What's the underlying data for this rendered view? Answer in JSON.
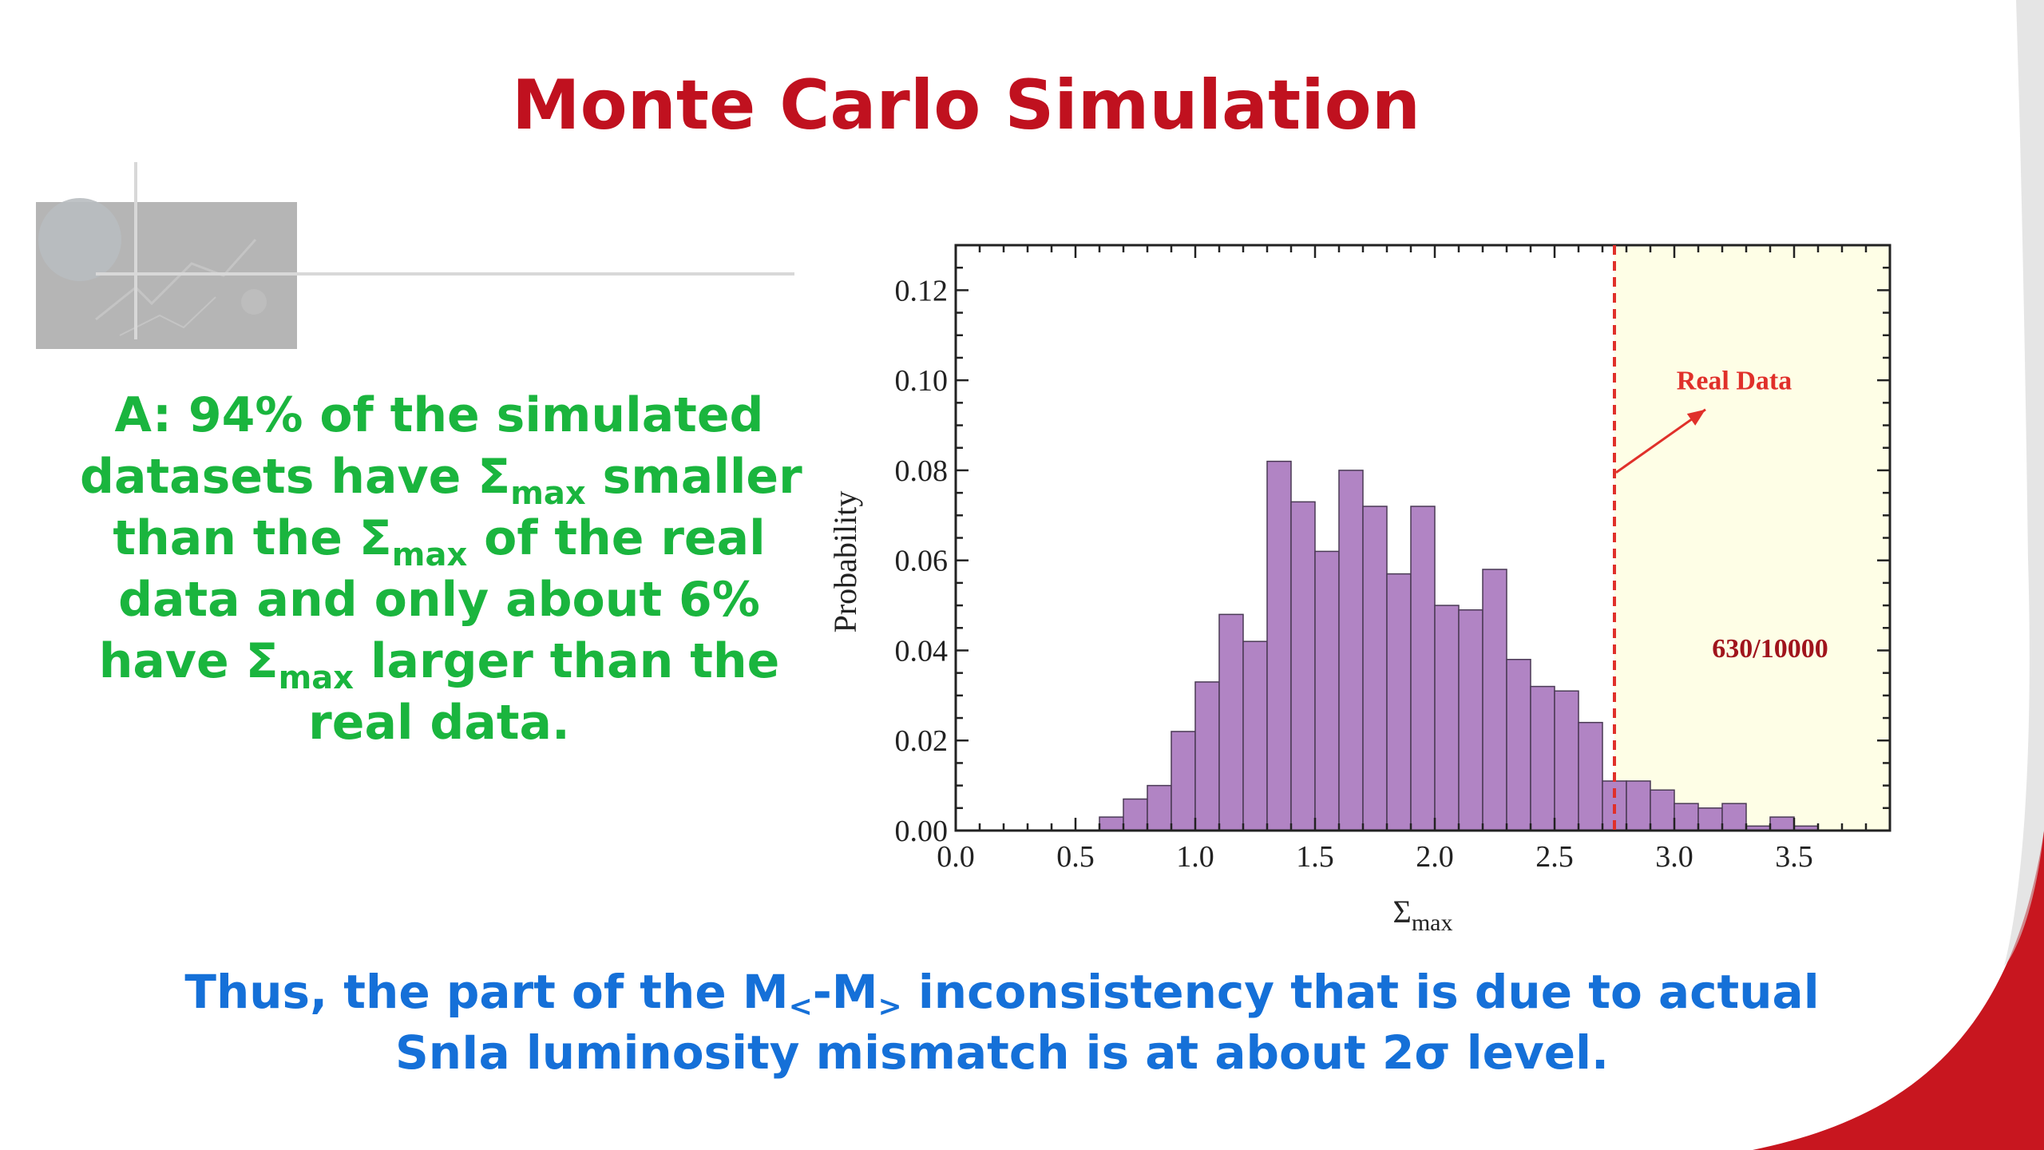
{
  "slide": {
    "title": "Monte Carlo Simulation",
    "answer": {
      "line1": "A: 94% of the simulated",
      "line2_a": "datasets have Σ",
      "line2_sub": "max",
      "line2_b": " smaller",
      "line3_a": "than the Σ",
      "line3_sub": "max",
      "line3_b": " of the real",
      "line4": "data and only about 6%",
      "line5_a": "have Σ",
      "line5_sub": "max",
      "line5_b": " larger than the",
      "line6": "real data."
    },
    "conclusion": {
      "line1_a": "Thus, the part of the M",
      "line1_sub1": "<",
      "line1_b": "-M",
      "line1_sub2": ">",
      "line1_c": " inconsistency that is due to actual",
      "line2": "SnIa luminosity mismatch is at about 2σ level."
    },
    "colors": {
      "title": "#c0111f",
      "answer": "#1ab53e",
      "conclusion": "#1570d8",
      "bar_fill": "#b184c4",
      "bar_stroke": "#4a3a55",
      "shade": "#fefee6",
      "threshold": "#e0302a"
    }
  },
  "chart_data": {
    "type": "bar",
    "xlabel_main": "Σ",
    "xlabel_sub": "max",
    "ylabel": "Probability",
    "xlim": [
      0.0,
      3.9
    ],
    "ylim": [
      0.0,
      0.13
    ],
    "bin_width": 0.1,
    "x_ticks": [
      "0.0",
      "0.5",
      "1.0",
      "1.5",
      "2.0",
      "2.5",
      "3.0",
      "3.5"
    ],
    "y_ticks": [
      "0.00",
      "0.02",
      "0.04",
      "0.06",
      "0.08",
      "0.10",
      "0.12"
    ],
    "bins": [
      {
        "x": 0.6,
        "y": 0.003
      },
      {
        "x": 0.7,
        "y": 0.007
      },
      {
        "x": 0.8,
        "y": 0.01
      },
      {
        "x": 0.9,
        "y": 0.022
      },
      {
        "x": 1.0,
        "y": 0.033
      },
      {
        "x": 1.1,
        "y": 0.048
      },
      {
        "x": 1.2,
        "y": 0.042
      },
      {
        "x": 1.3,
        "y": 0.082
      },
      {
        "x": 1.4,
        "y": 0.073
      },
      {
        "x": 1.5,
        "y": 0.062
      },
      {
        "x": 1.6,
        "y": 0.08
      },
      {
        "x": 1.7,
        "y": 0.072
      },
      {
        "x": 1.8,
        "y": 0.057
      },
      {
        "x": 1.9,
        "y": 0.072
      },
      {
        "x": 2.0,
        "y": 0.05
      },
      {
        "x": 2.1,
        "y": 0.049
      },
      {
        "x": 2.2,
        "y": 0.058
      },
      {
        "x": 2.3,
        "y": 0.038
      },
      {
        "x": 2.4,
        "y": 0.032
      },
      {
        "x": 2.5,
        "y": 0.031
      },
      {
        "x": 2.6,
        "y": 0.024
      },
      {
        "x": 2.7,
        "y": 0.011
      },
      {
        "x": 2.8,
        "y": 0.011
      },
      {
        "x": 2.9,
        "y": 0.009
      },
      {
        "x": 3.0,
        "y": 0.006
      },
      {
        "x": 3.1,
        "y": 0.005
      },
      {
        "x": 3.2,
        "y": 0.006
      },
      {
        "x": 3.3,
        "y": 0.001
      },
      {
        "x": 3.4,
        "y": 0.003
      },
      {
        "x": 3.5,
        "y": 0.001
      }
    ],
    "threshold_x": 2.75,
    "annotations": {
      "real_data": "Real Data",
      "count": "630/10000"
    },
    "grid": false,
    "legend": "none"
  }
}
